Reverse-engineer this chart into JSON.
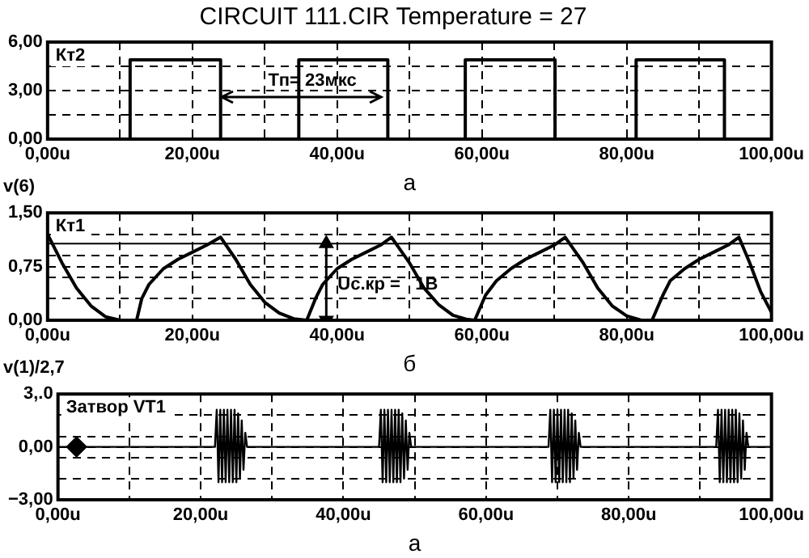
{
  "chart_data": [
    {
      "type": "line",
      "title": "CIRCUIT 111.CIR Temperature = 27",
      "xlabel": "а",
      "annotations": [
        "Кт2",
        "v(6)",
        {
          "text": "Тп= 23мкс",
          "x": 24,
          "y": 2.6
        }
      ],
      "xlim": [
        0,
        100
      ],
      "xticks": [
        {
          "value": 0,
          "label": "0,00u"
        },
        {
          "value": 10,
          "label": null
        },
        {
          "value": 20,
          "label": "20,00u"
        },
        {
          "value": 30,
          "label": null
        },
        {
          "value": 40,
          "label": "40,00u"
        },
        {
          "value": 50,
          "label": null
        },
        {
          "value": 60,
          "label": "60,00u"
        },
        {
          "value": 70,
          "label": null
        },
        {
          "value": 80,
          "label": "80,00u"
        },
        {
          "value": 90,
          "label": null
        },
        {
          "value": 100,
          "label": "100,00u"
        }
      ],
      "ylim": [
        0,
        6
      ],
      "yticks": [
        {
          "value": 0,
          "label": "0,00"
        },
        {
          "value": 1.5,
          "label": null
        },
        {
          "value": 3,
          "label": "3,00"
        },
        {
          "value": 4.5,
          "label": null
        },
        {
          "value": 6,
          "label": "6,00"
        }
      ],
      "grid": true,
      "series": [
        {
          "color": "#000000",
          "x": [
            0,
            11.4,
            11.4,
            23.9,
            23.9,
            34.7,
            34.7,
            47,
            47,
            57.7,
            57.7,
            70.1,
            70.1,
            81.3,
            81.3,
            93.5,
            93.5,
            100
          ],
          "values": [
            0,
            0,
            4.9,
            4.9,
            0,
            0,
            4.9,
            4.9,
            0,
            0,
            4.9,
            4.9,
            0,
            0,
            4.9,
            4.9,
            0,
            0
          ]
        }
      ]
    },
    {
      "type": "line",
      "xlabel": "б",
      "annotations": [
        "Кт1",
        "v(1)/2,7",
        {
          "text": "Uc.кр =   1В",
          "x": 38.5,
          "y": 1.07
        }
      ],
      "xlim": [
        0,
        100
      ],
      "xticks": [
        {
          "value": 0,
          "label": "0,00u"
        },
        {
          "value": 10,
          "label": null
        },
        {
          "value": 20,
          "label": "20,00u"
        },
        {
          "value": 30,
          "label": null
        },
        {
          "value": 40,
          "label": "40,00u"
        },
        {
          "value": 50,
          "label": null
        },
        {
          "value": 60,
          "label": "60,00u"
        },
        {
          "value": 70,
          "label": null
        },
        {
          "value": 80,
          "label": "80,00u"
        },
        {
          "value": 90,
          "label": null
        },
        {
          "value": 100,
          "label": "100,00u"
        }
      ],
      "ylim": [
        0,
        1.5
      ],
      "yticks": [
        {
          "value": 0,
          "label": "0,00"
        },
        {
          "value": 0.3,
          "label": null
        },
        {
          "value": 0.6,
          "label": null
        },
        {
          "value": 0.75,
          "label": "0,75"
        },
        {
          "value": 0.9,
          "label": null
        },
        {
          "value": 1.2,
          "label": null
        },
        {
          "value": 1.5,
          "label": "1,50"
        }
      ],
      "grid": true,
      "ref_lines": [
        {
          "axis": "y",
          "value": 1.07,
          "color": "#000000"
        }
      ],
      "series": [
        {
          "type": "line",
          "color": "#000000",
          "marker": "triangle",
          "x": [
            38.5,
            38.5
          ],
          "values": [
            0,
            1.07
          ]
        },
        {
          "color": "#000000",
          "x": [
            0,
            2,
            4,
            6,
            8,
            10,
            12.3,
            13,
            14,
            16,
            18,
            20,
            22,
            23.9,
            26,
            28,
            30,
            32,
            34,
            35.8,
            37,
            38,
            40,
            42,
            44,
            46,
            47.5,
            50,
            52,
            54,
            56,
            58,
            59,
            60.5,
            62,
            64,
            66,
            68,
            70,
            71.5,
            74,
            76,
            78,
            80,
            82,
            83.5,
            85,
            86,
            88,
            90,
            92,
            94,
            95.5,
            97,
            98.5,
            100
          ],
          "values": [
            1.2,
            0.8,
            0.45,
            0.2,
            0.05,
            0,
            0,
            0.3,
            0.5,
            0.72,
            0.85,
            0.95,
            1.05,
            1.16,
            0.85,
            0.5,
            0.25,
            0.1,
            0.02,
            0,
            0.3,
            0.5,
            0.72,
            0.85,
            0.95,
            1.05,
            1.16,
            0.8,
            0.45,
            0.22,
            0.07,
            0.01,
            0,
            0.35,
            0.55,
            0.72,
            0.85,
            0.95,
            1.05,
            1.16,
            0.8,
            0.45,
            0.2,
            0.06,
            0,
            0,
            0.35,
            0.55,
            0.72,
            0.85,
            0.95,
            1.05,
            1.16,
            0.8,
            0.4,
            0.11
          ]
        }
      ]
    },
    {
      "type": "line",
      "xlabel": "а",
      "annotations": [
        "Затвор VT1"
      ],
      "xlim": [
        0,
        100
      ],
      "xticks": [
        {
          "value": 0,
          "label": "0,00u"
        },
        {
          "value": 10,
          "label": null
        },
        {
          "value": 20,
          "label": "20,00u"
        },
        {
          "value": 30,
          "label": null
        },
        {
          "value": 40,
          "label": "40,00u"
        },
        {
          "value": 50,
          "label": null
        },
        {
          "value": 60,
          "label": "60,00u"
        },
        {
          "value": 70,
          "label": null
        },
        {
          "value": 80,
          "label": "80,00u"
        },
        {
          "value": 90,
          "label": null
        },
        {
          "value": 100,
          "label": "100,00u"
        }
      ],
      "ylim": [
        -3,
        3
      ],
      "yticks": [
        {
          "value": -3,
          "label": "−3,00"
        },
        {
          "value": -1.8,
          "label": null
        },
        {
          "value": -0.6,
          "label": null
        },
        {
          "value": 0,
          "label": "0,00"
        },
        {
          "value": 0.6,
          "label": null
        },
        {
          "value": 1.8,
          "label": null
        },
        {
          "value": 3,
          "label": "3,.0"
        }
      ],
      "grid": true,
      "series": [
        {
          "color": "#000000",
          "x": [
            0,
            22,
            22.25,
            22.5,
            22.75,
            23,
            23.25,
            23.5,
            23.75,
            24,
            24.25,
            24.5,
            24.75,
            25,
            25.25,
            25.5,
            25.75,
            26,
            26.25,
            26.5,
            45,
            45.25,
            45.5,
            45.75,
            46,
            46.25,
            46.5,
            46.75,
            47,
            47.25,
            47.5,
            47.75,
            48,
            48.25,
            48.5,
            48.75,
            49,
            49.25,
            49.5,
            68.75,
            69,
            69.25,
            69.5,
            69.75,
            70,
            70.25,
            70.5,
            70.75,
            71,
            71.25,
            71.5,
            71.75,
            72,
            72.25,
            72.5,
            72.75,
            73,
            73.25,
            92.25,
            92.5,
            92.75,
            93,
            93.25,
            93.5,
            93.75,
            94,
            94.25,
            94.5,
            94.75,
            95,
            95.25,
            95.5,
            95.75,
            96,
            96.25,
            96.5,
            96.75,
            100
          ],
          "values": [
            0,
            0,
            2.1,
            -2,
            2.1,
            -2,
            2.1,
            -2,
            2.1,
            -2,
            2.1,
            -2,
            2.1,
            -2,
            1.9,
            -1.8,
            1.5,
            -1.3,
            0.8,
            0,
            0,
            2.1,
            -2,
            2.1,
            -2,
            2.1,
            -2,
            2.1,
            -2,
            2.1,
            -2,
            2.1,
            -2,
            1.9,
            -1.8,
            1.5,
            -1.3,
            0.8,
            0,
            0,
            2.1,
            -2,
            2.1,
            -2,
            2.1,
            -2,
            2.1,
            -2,
            2.1,
            -2,
            2.1,
            -2,
            1.9,
            -1.8,
            1.5,
            -1.3,
            0.8,
            0,
            0,
            2.1,
            -2,
            2.1,
            -2,
            2.1,
            -2,
            2.1,
            -2,
            2.1,
            -2,
            2.1,
            -2,
            1.9,
            -1.8,
            1.5,
            -1.3,
            0.8,
            0,
            0
          ]
        },
        {
          "type": "scatter",
          "color": "#000000",
          "marker": "diamond",
          "x": [
            2.6
          ],
          "values": [
            0
          ]
        }
      ]
    }
  ]
}
